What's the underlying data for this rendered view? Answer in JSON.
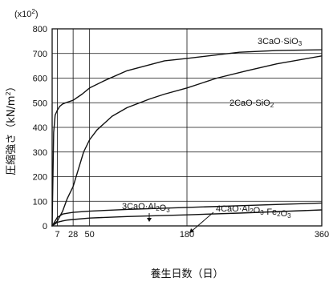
{
  "chart_data": {
    "type": "line",
    "title": "",
    "xlabel": "養生日数（日）",
    "ylabel_parts": {
      "main": "圧縮強さ（kN/m",
      "sup": "2",
      "end": "）"
    },
    "y_multiplier": {
      "main": "(x10",
      "sup": "2",
      "end": ")"
    },
    "xlim": [
      0,
      360
    ],
    "ylim": [
      0,
      800
    ],
    "x_ticks": [
      7,
      28,
      50,
      180,
      360
    ],
    "y_ticks": [
      0,
      100,
      200,
      300,
      400,
      500,
      600,
      700,
      800
    ],
    "grid": true,
    "series": [
      {
        "name": "3CaO·SiO3",
        "label_parts": [
          {
            "text": "3CaO·SiO",
            "sub": false
          },
          {
            "text": "3",
            "sub": true
          }
        ],
        "x": [
          0,
          2,
          4,
          7,
          10,
          14,
          20,
          28,
          40,
          50,
          70,
          100,
          150,
          180,
          250,
          300,
          360
        ],
        "y": [
          0,
          380,
          450,
          470,
          485,
          495,
          502,
          510,
          535,
          560,
          590,
          630,
          670,
          680,
          705,
          712,
          715
        ]
      },
      {
        "name": "2CaO·SiO2",
        "label_parts": [
          {
            "text": "2CaO·SiO",
            "sub": false
          },
          {
            "text": "2",
            "sub": true
          }
        ],
        "x": [
          0,
          7,
          14,
          20,
          28,
          35,
          42,
          50,
          60,
          80,
          100,
          130,
          150,
          180,
          220,
          260,
          300,
          360
        ],
        "y": [
          0,
          20,
          60,
          110,
          160,
          230,
          300,
          350,
          390,
          445,
          480,
          515,
          535,
          560,
          600,
          630,
          658,
          690
        ]
      },
      {
        "name": "3CaO·Al2O3",
        "label_parts": [
          {
            "text": "3CaO·Al",
            "sub": false
          },
          {
            "text": "2",
            "sub": true
          },
          {
            "text": "O",
            "sub": false
          },
          {
            "text": "3",
            "sub": true
          }
        ],
        "x": [
          0,
          7,
          14,
          21,
          28,
          50,
          100,
          180,
          250,
          360
        ],
        "y": [
          0,
          35,
          48,
          52,
          55,
          60,
          67,
          75,
          82,
          93
        ]
      },
      {
        "name": "4CaO·Al2O3·Fe2O3",
        "label_parts": [
          {
            "text": "4CaO·Al",
            "sub": false
          },
          {
            "text": "2",
            "sub": true
          },
          {
            "text": "O",
            "sub": false
          },
          {
            "text": "3",
            "sub": true
          },
          {
            "text": "·Fe",
            "sub": false
          },
          {
            "text": "2",
            "sub": true
          },
          {
            "text": "O",
            "sub": false
          },
          {
            "text": "3",
            "sub": true
          }
        ],
        "x": [
          0,
          7,
          14,
          21,
          28,
          50,
          100,
          180,
          250,
          360
        ],
        "y": [
          0,
          15,
          20,
          24,
          26,
          32,
          38,
          45,
          52,
          65
        ]
      }
    ]
  }
}
